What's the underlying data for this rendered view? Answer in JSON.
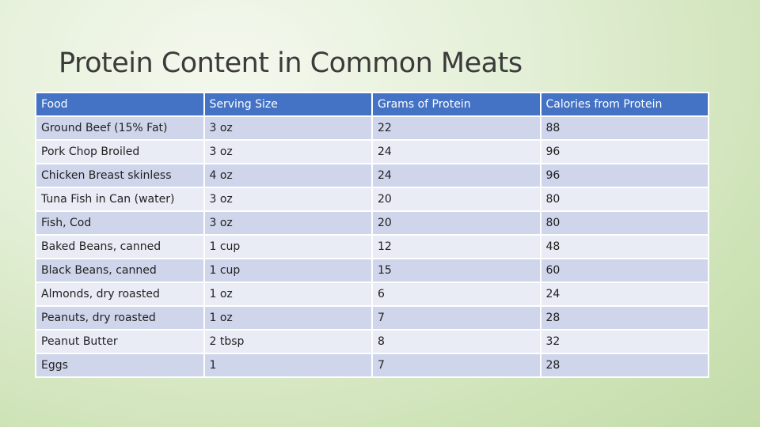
{
  "title": "Protein Content in Common Meats",
  "table": {
    "headers": [
      "Food",
      "Serving Size",
      "Grams of Protein",
      "Calories from Protein"
    ],
    "rows": [
      [
        "Ground Beef (15% Fat)",
        "3 oz",
        "22",
        "88"
      ],
      [
        "Pork Chop Broiled",
        "3 oz",
        "24",
        "96"
      ],
      [
        "Chicken Breast skinless",
        "4 oz",
        "24",
        "96"
      ],
      [
        "Tuna Fish in Can (water)",
        "3 oz",
        "20",
        "80"
      ],
      [
        "Fish, Cod",
        "3 oz",
        "20",
        "80"
      ],
      [
        "Baked Beans, canned",
        "1 cup",
        "12",
        "48"
      ],
      [
        "Black Beans, canned",
        "1 cup",
        "15",
        "60"
      ],
      [
        "Almonds, dry roasted",
        "1 oz",
        "6",
        "24"
      ],
      [
        "Peanuts, dry roasted",
        "1 oz",
        "7",
        "28"
      ],
      [
        "Peanut Butter",
        "2 tbsp",
        "8",
        "32"
      ],
      [
        "Eggs",
        "1",
        "7",
        "28"
      ]
    ]
  },
  "colors": {
    "header_fill": "#4472c4",
    "row_fill_dark": "#cfd5ea",
    "row_fill_light": "#e9ebf5",
    "background_green": "#cfe3b8"
  }
}
